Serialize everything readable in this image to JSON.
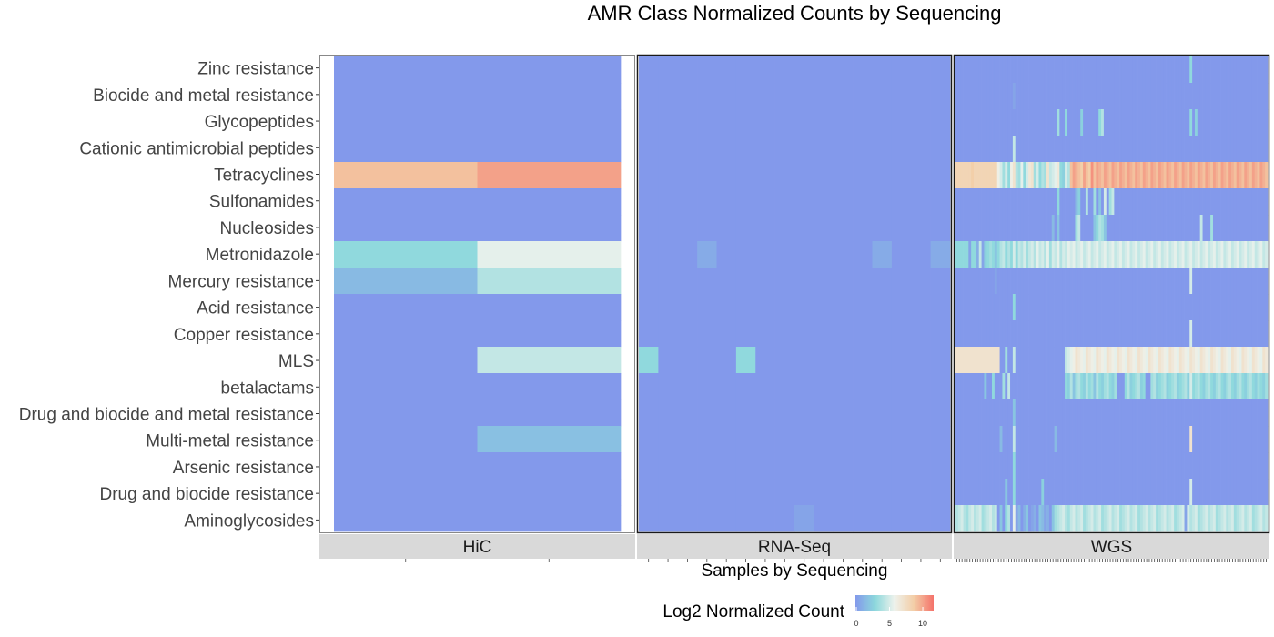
{
  "chart_data": {
    "type": "heatmap",
    "title": "AMR Class Normalized Counts by Sequencing",
    "xlabel": "Samples by Sequencing",
    "ylabel": "",
    "legend": {
      "title": "Log2 Normalized Count",
      "ticks": [
        0,
        5,
        10
      ],
      "range": [
        0,
        11.5
      ],
      "placement": "bottom"
    },
    "colors": {
      "low": "#8399EB",
      "midlow": "#8CD8DC",
      "mid": "#EEF2EC",
      "midhigh": "#F3CDA6",
      "high": "#F4726A",
      "strip_bg": "#D9D9D9",
      "panel_border": "#1a1a1a"
    },
    "rows": [
      "Zinc resistance",
      "Biocide and metal resistance",
      "Glycopeptides",
      "Cationic antimicrobial peptides",
      "Tetracyclines",
      "Sulfonamides",
      "Nucleosides",
      "Metronidazole",
      "Mercury resistance",
      "Acid resistance",
      "Copper resistance",
      "MLS",
      "betalactams",
      "Drug and biocide and metal resistance",
      "Multi-metal resistance",
      "Arsenic resistance",
      "Drug and biocide resistance",
      "Aminoglycosides"
    ],
    "facets": [
      {
        "name": "HiC",
        "n_samples": 2,
        "values": {
          "Tetracyclines": [
            9,
            10
          ],
          "Metronidazole": [
            3,
            5.5
          ],
          "Mercury resistance": [
            1.5,
            4
          ],
          "MLS": [
            0,
            4.5
          ],
          "Multi-metal resistance": [
            0,
            1.8
          ]
        }
      },
      {
        "name": "RNA-Seq",
        "n_samples": 16,
        "values": {
          "Metronidazole": [
            0,
            0,
            0,
            0.8,
            0,
            0,
            0,
            0,
            0,
            0,
            0,
            0,
            0.8,
            0,
            0,
            0.8
          ],
          "MLS": [
            3,
            0,
            0,
            0,
            0,
            3,
            0,
            0,
            0,
            0,
            0,
            0,
            0,
            0,
            0,
            0
          ],
          "Aminoglycosides": [
            0,
            0,
            0,
            0,
            0,
            0,
            0,
            0,
            0.5,
            0,
            0,
            0,
            0,
            0,
            0,
            0
          ]
        }
      },
      {
        "name": "WGS",
        "n_samples": 120,
        "values": {
          "Zinc resistance": {
            "90": 3
          },
          "Biocide and metal resistance": {
            "22": 0.5
          },
          "Glycopeptides": {
            "39": 3.5,
            "42": 3,
            "48": 2.5,
            "55": 3,
            "56": 4,
            "90": 3,
            "92": 2.5
          },
          "Cationic antimicrobial peptides": {
            "22": 4.5
          },
          "Tetracyclines": [
            8,
            8,
            8,
            8,
            8,
            8,
            8.5,
            8,
            8,
            8,
            8,
            8,
            8,
            8,
            8,
            8,
            6,
            5,
            3.5,
            5,
            3,
            6,
            7,
            4,
            3.5,
            5.5,
            3,
            5,
            6.5,
            7,
            3.5,
            5,
            3,
            4,
            3.5,
            7,
            4.5,
            5,
            5.5,
            6.5,
            3,
            2.5,
            5,
            4,
            9,
            10,
            9.5,
            9,
            8.5,
            10,
            9,
            8.5,
            10.5,
            9,
            10,
            9.5,
            9,
            10,
            9.5,
            9,
            10,
            9.5,
            9,
            10,
            9.5,
            9,
            10,
            9.5,
            9,
            10,
            9.5,
            9,
            10,
            9.5,
            9,
            10,
            9.5,
            9,
            10,
            9.5,
            9,
            10,
            9.5,
            9,
            10,
            9.5,
            9,
            10,
            9.5,
            9,
            10,
            9.5,
            9,
            10,
            9.5,
            9,
            10,
            9.5,
            9,
            10,
            9.5,
            9,
            10,
            9.5,
            9,
            10,
            9.5,
            9,
            10,
            9.5,
            9,
            10,
            9.5,
            9,
            10,
            9.5,
            9,
            10,
            9.5,
            9,
            10,
            9.5
          ],
          "Sulfonamides": {
            "39": 3,
            "46": 1.5,
            "47": 2.5,
            "50": 4,
            "53": 3.5,
            "55": 2,
            "57": 5,
            "59": 3.5,
            "60": 4.5
          },
          "Nucleosides": {
            "37": 1.5,
            "39": 2,
            "46": 3.5,
            "47": 4.5,
            "53": 2,
            "54": 3,
            "55": 4,
            "56": 3.5,
            "57": 2,
            "94": 4.5,
            "98": 3.5
          },
          "Metronidazole": [
            3,
            3,
            3,
            3,
            3,
            0.5,
            3,
            3,
            1,
            4.5,
            0.5,
            2.5,
            3,
            3.5,
            3,
            2,
            3,
            4,
            4.5,
            3,
            4,
            3,
            5,
            3,
            4.5,
            4,
            5,
            3.5,
            4.5,
            5,
            4,
            5.5,
            4.5,
            5,
            4,
            5.5,
            3.5,
            5,
            4.5,
            5.5,
            4,
            5,
            4.5,
            5.5,
            5,
            5.5,
            4.5,
            5,
            5.5,
            4.5,
            5,
            5.5,
            4.5,
            5,
            5.5,
            4.5,
            5,
            5.5,
            4.5,
            5,
            5.5,
            4.5,
            5,
            5.5,
            4.5,
            5,
            5.5,
            4.5,
            5,
            5.5,
            4.5,
            5,
            5.5,
            4.5,
            5,
            5.5,
            4.5,
            5,
            5.5,
            4.5,
            5,
            5.5,
            4.5,
            5,
            5.5,
            4.5,
            5,
            5.5,
            4.5,
            5,
            5.5,
            4.5,
            5,
            5.5,
            4.5,
            5,
            5.5,
            4.5,
            5,
            5.5,
            4.5,
            5,
            5.5,
            4.5,
            5,
            5.5,
            4.5,
            5,
            5.5,
            4.5,
            5,
            5.5,
            4.5,
            5,
            5.5,
            4.5,
            5,
            5.5,
            4.5,
            5
          ],
          "Mercury resistance": {
            "15": 0.5,
            "90": 5
          },
          "Acid resistance": {
            "22": 3
          },
          "Copper resistance": {
            "90": 5
          },
          "MLS": [
            7,
            7,
            7,
            7,
            7,
            7,
            7,
            7,
            7,
            7,
            7,
            7,
            7,
            7,
            7,
            7,
            7,
            0,
            0,
            3.5,
            0,
            0,
            4.5,
            0,
            0,
            0,
            0,
            0,
            0,
            0,
            0,
            0,
            0,
            0,
            0,
            0,
            0,
            0,
            0,
            0,
            0,
            0,
            4.5,
            5,
            5.5,
            6,
            7,
            6.5,
            6,
            5.5,
            7,
            6.5,
            6,
            5.5,
            7,
            6.5,
            6,
            5.5,
            7,
            6.5,
            6,
            5.5,
            7,
            6.5,
            6,
            5.5,
            7,
            6.5,
            6,
            5.5,
            7,
            6.5,
            6,
            5.5,
            7,
            6.5,
            6,
            5.5,
            7,
            6.5,
            6,
            5.5,
            7,
            6.5,
            6,
            5.5,
            7,
            6.5,
            6,
            5.5,
            7,
            6.5,
            6,
            5.5,
            7,
            6.5,
            6,
            5.5,
            7,
            6.5,
            6,
            5.5,
            7,
            6.5,
            6,
            5.5,
            7,
            6.5,
            6,
            5.5,
            7,
            6.5,
            6,
            5.5,
            7,
            6.5,
            6,
            5.5,
            7,
            6.5,
            6,
            5.5,
            7,
            6.5
          ],
          "betalactams": {
            "11": 2,
            "14": 3,
            "18": 3.5,
            "20": 4.5,
            "42": 3,
            "43": 2.5,
            "44": 4,
            "45": 2,
            "46": 3.5,
            "47": 4,
            "48": 3,
            "49": 2.5,
            "50": 4,
            "51": 3,
            "52": 3.5,
            "53": 2,
            "54": 4,
            "55": 3,
            "56": 2.5,
            "57": 3.5,
            "58": 4,
            "59": 3,
            "60": 2.5,
            "61": 3.5,
            "65": 3,
            "66": 4,
            "67": 2.5,
            "68": 3,
            "69": 3.5,
            "70": 4,
            "71": 2.5,
            "72": 3,
            "75": 3.5,
            "76": 4,
            "77": 2.5,
            "78": 3,
            "79": 3.5,
            "80": 4,
            "81": 2.5,
            "82": 3,
            "83": 3.5,
            "84": 4,
            "85": 2.5,
            "86": 3,
            "87": 3.5,
            "88": 4,
            "89": 2.5,
            "90": 5,
            "91": 3,
            "92": 3.5,
            "93": 4,
            "94": 3,
            "95": 2.5,
            "96": 3.5,
            "97": 4,
            "98": 3,
            "99": 2.5,
            "100": 3.5,
            "101": 4,
            "102": 3,
            "103": 2.5,
            "104": 3.5,
            "105": 4,
            "106": 3,
            "107": 2.5,
            "108": 3.5,
            "109": 4,
            "110": 3,
            "111": 2.5,
            "112": 3.5,
            "113": 4,
            "114": 3,
            "115": 2.5,
            "116": 3.5,
            "117": 3,
            "118": 2.5,
            "119": 3.5
          },
          "Drug and biocide and metal resistance": {
            "22": 2
          },
          "Multi-metal resistance": {
            "17": 1.5,
            "22": 4.5,
            "38": 1.5,
            "90": 7
          },
          "Arsenic resistance": {
            "22": 3
          },
          "Drug and biocide resistance": {
            "19": 2,
            "22": 3,
            "33": 2.5,
            "90": 5
          },
          "Aminoglycosides": [
            4,
            4.5,
            5,
            4,
            3.5,
            4.5,
            5,
            4,
            4.5,
            5,
            3.5,
            4,
            4.5,
            5,
            4,
            4.5,
            0,
            2,
            0,
            3,
            4,
            0,
            5.5,
            0.5,
            1.5,
            0,
            1,
            2,
            0,
            0.5,
            1,
            0,
            2,
            1.5,
            0.5,
            1,
            0,
            2,
            3.5,
            4,
            4.5,
            5,
            4,
            3.5,
            4.5,
            5,
            4,
            4.5,
            5,
            3.5,
            4,
            4.5,
            5,
            4,
            4.5,
            5,
            3.5,
            4,
            4.5,
            5,
            4,
            4.5,
            5,
            3.5,
            4,
            4.5,
            5,
            4,
            4.5,
            5,
            3.5,
            4,
            4.5,
            5,
            4,
            4.5,
            5,
            3.5,
            4,
            4.5,
            5,
            4,
            4.5,
            5,
            3.5,
            4,
            4.5,
            5,
            0.5,
            5,
            4,
            4.5,
            5,
            3.5,
            4,
            4.5,
            5,
            4,
            4.5,
            5,
            3.5,
            4,
            4.5,
            5,
            4,
            4.5,
            5,
            3.5,
            4,
            4.5,
            5,
            4,
            4.5,
            5,
            3.5,
            4,
            4.5,
            5,
            4,
            4.5
          ]
        }
      }
    ]
  }
}
